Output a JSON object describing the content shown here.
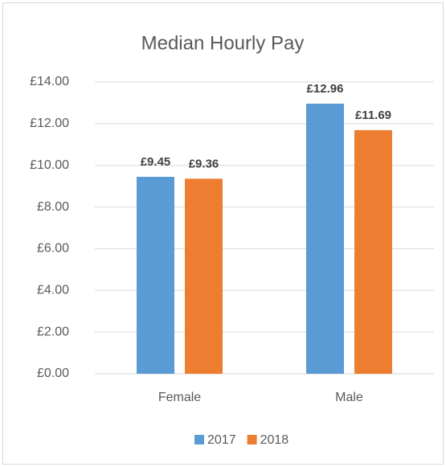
{
  "chart_data": {
    "type": "bar",
    "title": "Median Hourly Pay",
    "categories": [
      "Female",
      "Male"
    ],
    "series": [
      {
        "name": "2017",
        "color": "#5b9bd5",
        "values": [
          9.45,
          12.96
        ],
        "value_labels": [
          "£9.45",
          "£12.96"
        ]
      },
      {
        "name": "2018",
        "color": "#ed7d31",
        "values": [
          9.36,
          11.69
        ],
        "value_labels": [
          "£9.36",
          "£11.69"
        ]
      }
    ],
    "ylim": [
      0,
      14
    ],
    "yticks": [
      {
        "value": 0,
        "label": "£0.00"
      },
      {
        "value": 2,
        "label": "£2.00"
      },
      {
        "value": 4,
        "label": "£4.00"
      },
      {
        "value": 6,
        "label": "£6.00"
      },
      {
        "value": 8,
        "label": "£8.00"
      },
      {
        "value": 10,
        "label": "£10.00"
      },
      {
        "value": 12,
        "label": "£12.00"
      },
      {
        "value": 14,
        "label": "£14.00"
      }
    ],
    "grid": true,
    "legend": "bottom"
  }
}
